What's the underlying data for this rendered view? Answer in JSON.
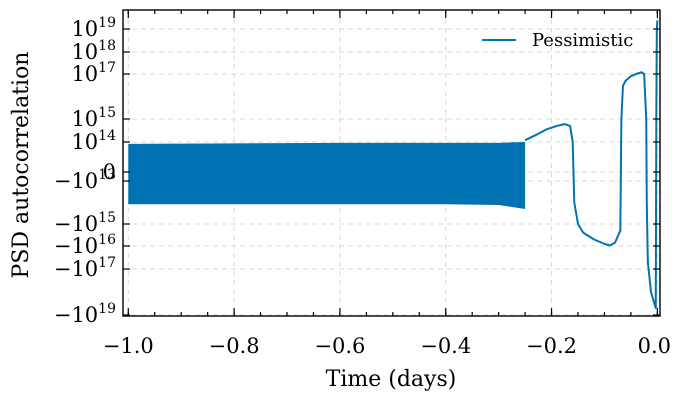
{
  "chart_data": {
    "type": "line",
    "title": "",
    "xlabel": "Time (days)",
    "ylabel": "PSD autocorrelation",
    "xlim": [
      -1.01,
      0.005
    ],
    "yscale": "symlog",
    "x_ticks": [
      {
        "value": -1.0,
        "label": "−1.0"
      },
      {
        "value": -0.8,
        "label": "−0.8"
      },
      {
        "value": -0.6,
        "label": "−0.6"
      },
      {
        "value": -0.4,
        "label": "−0.4"
      },
      {
        "value": -0.2,
        "label": "−0.2"
      },
      {
        "value": 0.0,
        "label": "0.0"
      }
    ],
    "y_ticks": [
      {
        "value": 1e+19,
        "label": "10^19"
      },
      {
        "value": 1e+18,
        "label": "10^18"
      },
      {
        "value": 1e+17,
        "label": "10^17"
      },
      {
        "value": 1000000000000000.0,
        "label": "10^15"
      },
      {
        "value": 100000000000000.0,
        "label": "10^14"
      },
      {
        "value": 0,
        "label": "0"
      },
      {
        "value": -10000000000000.0,
        "label": "−10^13"
      },
      {
        "value": -1000000000000000.0,
        "label": "−10^15"
      },
      {
        "value": -1e+16,
        "label": "−10^16"
      },
      {
        "value": -1e+17,
        "label": "−10^17"
      },
      {
        "value": -1e+19,
        "label": "−10^19"
      }
    ],
    "grid": true,
    "legend": {
      "position": "top-right",
      "entries": [
        "Pessimistic"
      ]
    },
    "series": [
      {
        "name": "Pessimistic",
        "color": "#0072b2",
        "style": "dense oscillation between about +1e14 and -1e14 from -1.0 to -0.25 days",
        "envelope": [
          {
            "x": -1.0,
            "upper": 80000000000000.0,
            "lower": -120000000000000.0
          },
          {
            "x": -0.8,
            "upper": 85000000000000.0,
            "lower": -120000000000000.0
          },
          {
            "x": -0.6,
            "upper": 90000000000000.0,
            "lower": -120000000000000.0
          },
          {
            "x": -0.4,
            "upper": 90000000000000.0,
            "lower": -120000000000000.0
          },
          {
            "x": -0.3,
            "upper": 90000000000000.0,
            "lower": -130000000000000.0
          },
          {
            "x": -0.25,
            "upper": 100000000000000.0,
            "lower": -200000000000000.0
          }
        ],
        "points": [
          {
            "x": -0.25,
            "y": 120000000000000.0
          },
          {
            "x": -0.23,
            "y": 200000000000000.0
          },
          {
            "x": -0.21,
            "y": 350000000000000.0
          },
          {
            "x": -0.19,
            "y": 500000000000000.0
          },
          {
            "x": -0.175,
            "y": 600000000000000.0
          },
          {
            "x": -0.165,
            "y": 500000000000000.0
          },
          {
            "x": -0.16,
            "y": 100000000000000.0
          },
          {
            "x": -0.157,
            "y": -100000000000000.0
          },
          {
            "x": -0.15,
            "y": -1000000000000000.0
          },
          {
            "x": -0.14,
            "y": -2500000000000000.0
          },
          {
            "x": -0.12,
            "y": -5000000000000000.0
          },
          {
            "x": -0.1,
            "y": -8000000000000000.0
          },
          {
            "x": -0.09,
            "y": -9500000000000000.0
          },
          {
            "x": -0.08,
            "y": -7000000000000000.0
          },
          {
            "x": -0.07,
            "y": -2000000000000000.0
          },
          {
            "x": -0.068,
            "y": 1000000000000000.0
          },
          {
            "x": -0.065,
            "y": 3e+16
          },
          {
            "x": -0.06,
            "y": 5e+16
          },
          {
            "x": -0.05,
            "y": 8e+16
          },
          {
            "x": -0.04,
            "y": 1e+17
          },
          {
            "x": -0.03,
            "y": 1.2e+17
          },
          {
            "x": -0.025,
            "y": 1e+17
          },
          {
            "x": -0.021,
            "y": 1000000000000000.0
          },
          {
            "x": -0.02,
            "y": -100000000000000.0
          },
          {
            "x": -0.018,
            "y": -5e+16
          },
          {
            "x": -0.012,
            "y": -1e+18
          },
          {
            "x": -0.006,
            "y": -3e+18
          },
          {
            "x": -0.003,
            "y": -5e+18
          },
          {
            "x": -0.002,
            "y": 1000000000000000.0
          },
          {
            "x": -0.001,
            "y": 1e+19
          },
          {
            "x": 0.0,
            "y": 2e+19
          }
        ]
      }
    ]
  }
}
